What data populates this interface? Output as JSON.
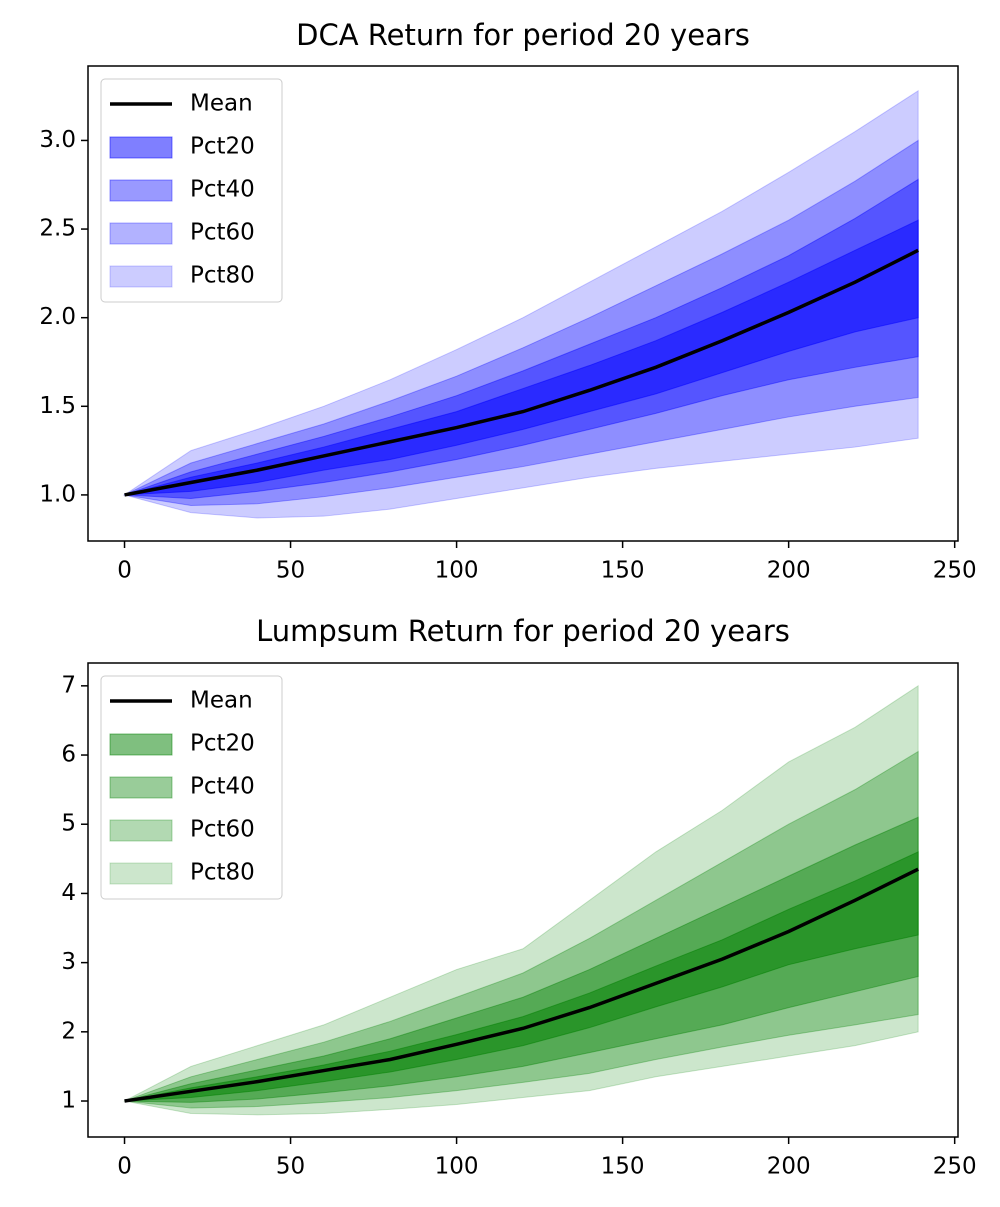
{
  "chart_data": [
    {
      "type": "fan",
      "title": "DCA Return for period 20 years",
      "x": [
        0,
        20,
        40,
        60,
        80,
        100,
        120,
        140,
        160,
        180,
        200,
        220,
        239
      ],
      "xlim": [
        -11,
        251
      ],
      "xticks": [
        0,
        50,
        100,
        150,
        200,
        250
      ],
      "ylim": [
        0.74,
        3.42
      ],
      "yticks": [
        {
          "value": 1,
          "label": "1.0"
        },
        1.5,
        {
          "value": 2,
          "label": "2.0"
        },
        2.5,
        {
          "value": 3,
          "label": "3.0"
        }
      ],
      "legend": "upper left",
      "series": [
        {
          "name": "Mean",
          "color": "#000000",
          "values": [
            1.0,
            1.07,
            1.14,
            1.22,
            1.3,
            1.38,
            1.47,
            1.59,
            1.72,
            1.87,
            2.03,
            2.2,
            2.38
          ]
        },
        {
          "name": "Pct20",
          "color": "#0000ff",
          "opacity": 0.5,
          "lower": [
            1.0,
            1.02,
            1.07,
            1.14,
            1.2,
            1.28,
            1.37,
            1.47,
            1.57,
            1.69,
            1.81,
            1.92,
            2.0
          ],
          "upper": [
            1.0,
            1.1,
            1.18,
            1.27,
            1.37,
            1.47,
            1.6,
            1.73,
            1.87,
            2.03,
            2.2,
            2.38,
            2.55
          ]
        },
        {
          "name": "Pct40",
          "color": "#0000ff",
          "opacity": 0.4,
          "lower": [
            1.0,
            0.98,
            1.02,
            1.07,
            1.13,
            1.2,
            1.28,
            1.37,
            1.46,
            1.56,
            1.65,
            1.72,
            1.78
          ],
          "upper": [
            1.0,
            1.13,
            1.23,
            1.33,
            1.44,
            1.56,
            1.7,
            1.85,
            2.0,
            2.17,
            2.35,
            2.56,
            2.78
          ]
        },
        {
          "name": "Pct60",
          "color": "#0000ff",
          "opacity": 0.3,
          "lower": [
            1.0,
            0.94,
            0.95,
            0.99,
            1.04,
            1.1,
            1.16,
            1.23,
            1.3,
            1.37,
            1.44,
            1.5,
            1.55
          ],
          "upper": [
            1.0,
            1.18,
            1.29,
            1.4,
            1.53,
            1.67,
            1.83,
            2.0,
            2.18,
            2.36,
            2.55,
            2.77,
            3.0
          ]
        },
        {
          "name": "Pct80",
          "color": "#0000ff",
          "opacity": 0.2,
          "lower": [
            1.0,
            0.9,
            0.87,
            0.88,
            0.92,
            0.98,
            1.04,
            1.1,
            1.15,
            1.19,
            1.23,
            1.27,
            1.32
          ],
          "upper": [
            1.0,
            1.25,
            1.37,
            1.5,
            1.65,
            1.82,
            2.0,
            2.2,
            2.4,
            2.6,
            2.82,
            3.05,
            3.28
          ]
        }
      ]
    },
    {
      "type": "fan",
      "title": "Lumpsum Return for period 20 years",
      "x": [
        0,
        20,
        40,
        60,
        80,
        100,
        120,
        140,
        160,
        180,
        200,
        220,
        239
      ],
      "xlim": [
        -11,
        251
      ],
      "xticks": [
        0,
        50,
        100,
        150,
        200,
        250
      ],
      "ylim": [
        0.48,
        7.33
      ],
      "yticks": [
        1,
        2,
        3,
        4,
        5,
        6,
        7
      ],
      "legend": "upper left",
      "series": [
        {
          "name": "Mean",
          "color": "#000000",
          "values": [
            1.0,
            1.14,
            1.28,
            1.44,
            1.6,
            1.82,
            2.05,
            2.35,
            2.7,
            3.05,
            3.45,
            3.9,
            4.35
          ]
        },
        {
          "name": "Pct20",
          "color": "#008000",
          "opacity": 0.5,
          "lower": [
            1.0,
            1.05,
            1.15,
            1.28,
            1.42,
            1.6,
            1.8,
            2.06,
            2.36,
            2.65,
            2.97,
            3.2,
            3.4
          ],
          "upper": [
            1.0,
            1.19,
            1.35,
            1.52,
            1.72,
            1.96,
            2.22,
            2.56,
            2.95,
            3.33,
            3.77,
            4.18,
            4.6
          ]
        },
        {
          "name": "Pct40",
          "color": "#008000",
          "opacity": 0.4,
          "lower": [
            1.0,
            0.98,
            1.03,
            1.12,
            1.22,
            1.35,
            1.5,
            1.7,
            1.9,
            2.1,
            2.35,
            2.58,
            2.8
          ],
          "upper": [
            1.0,
            1.25,
            1.45,
            1.65,
            1.9,
            2.2,
            2.5,
            2.9,
            3.35,
            3.8,
            4.25,
            4.7,
            5.1
          ]
        },
        {
          "name": "Pct60",
          "color": "#008000",
          "opacity": 0.3,
          "lower": [
            1.0,
            0.9,
            0.92,
            0.98,
            1.05,
            1.15,
            1.27,
            1.4,
            1.6,
            1.78,
            1.95,
            2.1,
            2.25
          ],
          "upper": [
            1.0,
            1.35,
            1.6,
            1.85,
            2.15,
            2.5,
            2.85,
            3.35,
            3.9,
            4.45,
            5.0,
            5.5,
            6.05
          ]
        },
        {
          "name": "Pct80",
          "color": "#008000",
          "opacity": 0.2,
          "lower": [
            1.0,
            0.82,
            0.8,
            0.82,
            0.88,
            0.95,
            1.05,
            1.15,
            1.35,
            1.5,
            1.65,
            1.8,
            2.0
          ],
          "upper": [
            1.0,
            1.5,
            1.8,
            2.1,
            2.5,
            2.9,
            3.2,
            3.9,
            4.6,
            5.2,
            5.9,
            6.4,
            7.0
          ]
        }
      ]
    }
  ]
}
